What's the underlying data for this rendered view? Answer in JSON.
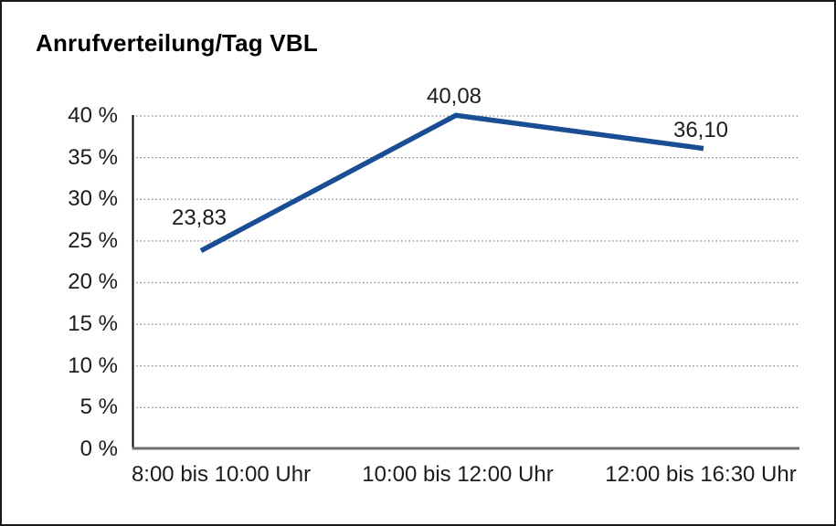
{
  "window": {
    "background": "#ffffff",
    "border_color": "#1a1a1a"
  },
  "chart_data": {
    "type": "line",
    "title": "Anrufverteilung/Tag VBL",
    "categories": [
      "8:00 bis 10:00 Uhr",
      "10:00 bis 12:00 Uhr",
      "12:00 bis 16:30 Uhr"
    ],
    "values": [
      23.83,
      40.08,
      36.1
    ],
    "point_labels": [
      "23,83",
      "40,08",
      "36,10"
    ],
    "yticks": [
      40,
      35,
      30,
      25,
      20,
      15,
      10,
      5,
      0
    ],
    "ytick_labels": [
      "40 %",
      "35 %",
      "30 %",
      "25 %",
      "20 %",
      "15 %",
      "10 %",
      "5 %",
      "0 %"
    ],
    "ylim": [
      0,
      40
    ],
    "xlabel": "",
    "ylabel": "",
    "legend": "none",
    "grid": "horizontal-dotted",
    "line_color": "#1a4e94",
    "gridline_color": "#8a8a8a",
    "x_axis_color": "#6f6f6f",
    "y_axis_color": "#000000"
  }
}
